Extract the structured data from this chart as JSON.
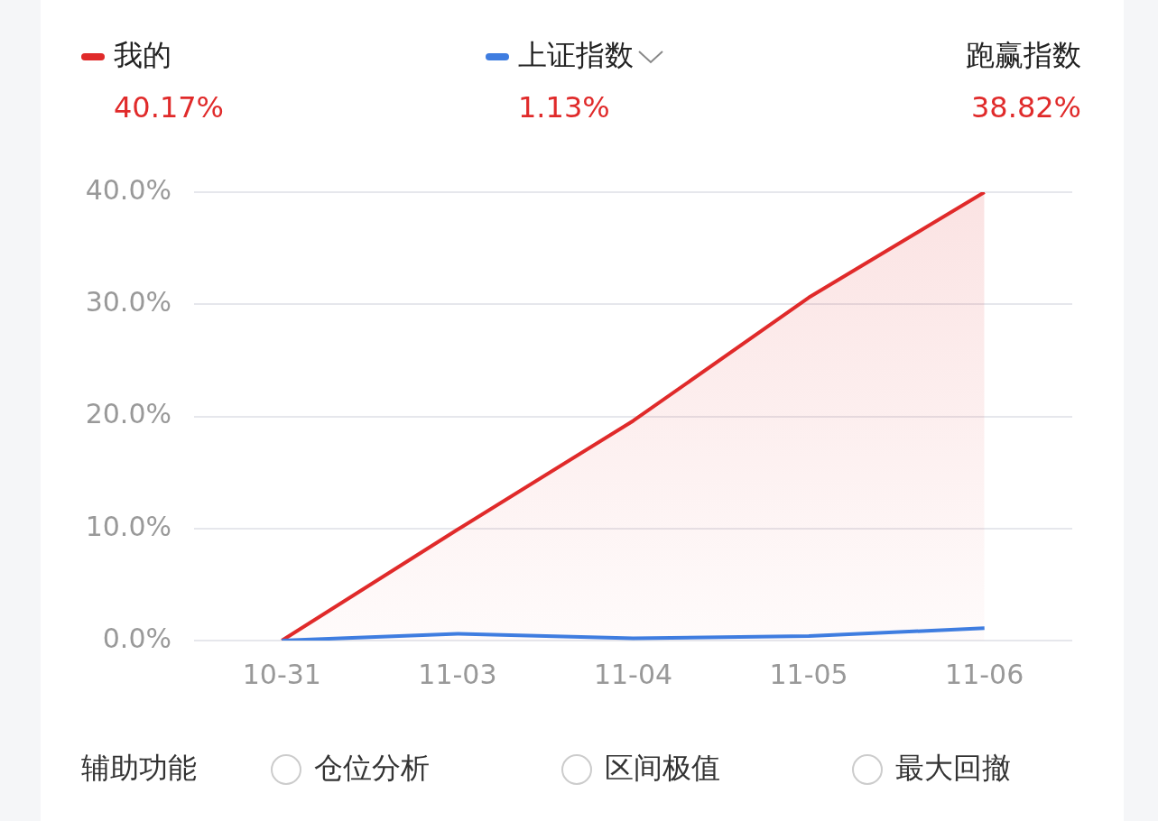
{
  "chart_data": {
    "type": "line",
    "categories": [
      "10-31",
      "11-03",
      "11-04",
      "11-05",
      "11-06"
    ],
    "series": [
      {
        "name": "我的",
        "color": "#e02a2a",
        "type": "area",
        "values": [
          0,
          9.9,
          19.6,
          30.6,
          40
        ]
      },
      {
        "name": "上证指数",
        "color": "#3f7de0",
        "type": "line",
        "values": [
          0,
          0.6,
          0.2,
          0.4,
          1.1
        ]
      }
    ],
    "ylim": [
      0,
      40
    ],
    "yticks": [
      {
        "value": 0,
        "label": "0.0%"
      },
      {
        "value": 10,
        "label": "10.0%"
      },
      {
        "value": 20,
        "label": "20.0%"
      },
      {
        "value": 30,
        "label": "30.0%"
      },
      {
        "value": 40,
        "label": "40.0%"
      }
    ],
    "grid": "y",
    "legend": "top",
    "marker": "none",
    "line_style": "solid",
    "annotations": [
      "40.17%",
      "1.13%",
      "跑赢指数",
      "38.82%",
      "辅助功能",
      "仓位分析",
      "区间极值",
      "最大回撤"
    ]
  }
}
